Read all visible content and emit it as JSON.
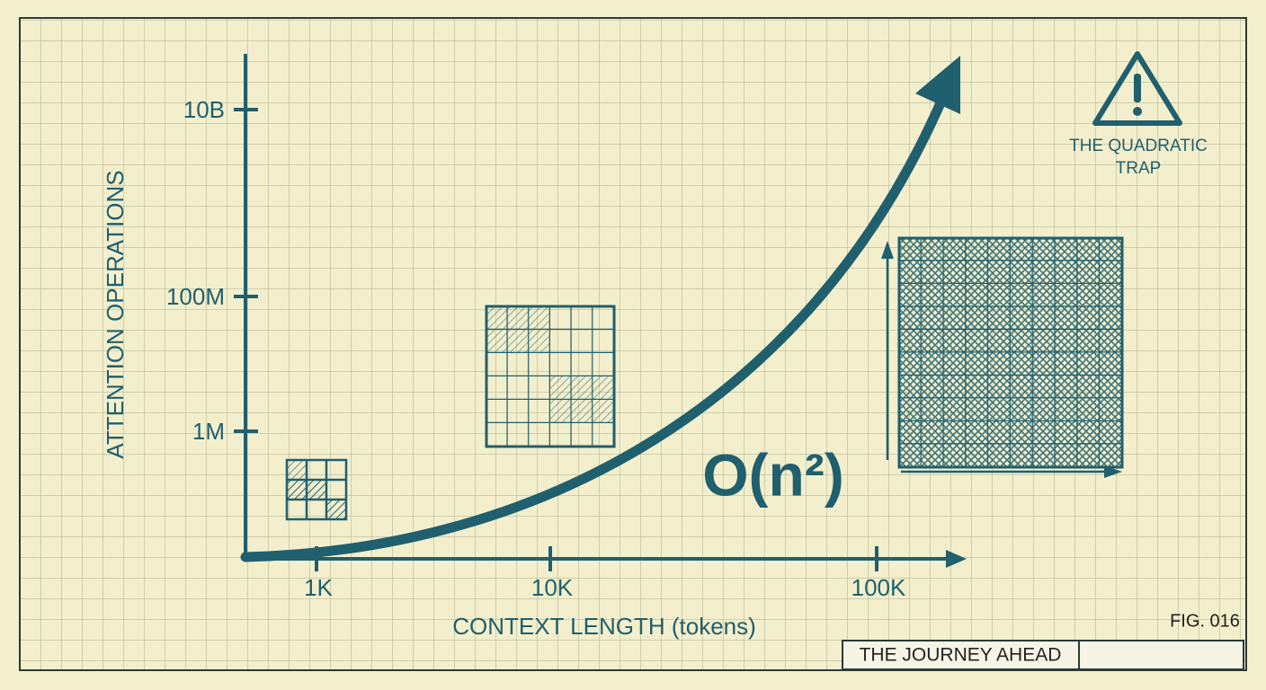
{
  "y_axis": {
    "label": "ATTENTION OPERATIONS",
    "ticks": [
      "10B",
      "100M",
      "1M"
    ]
  },
  "x_axis": {
    "label": "CONTEXT LENGTH (tokens)",
    "ticks": [
      "1K",
      "10K",
      "100K"
    ]
  },
  "formula": "O(n²)",
  "warning": {
    "lines": [
      "THE QUADRATIC",
      "TRAP"
    ]
  },
  "figure": "FIG. 016",
  "footer": "THE JOURNEY AHEAD"
}
